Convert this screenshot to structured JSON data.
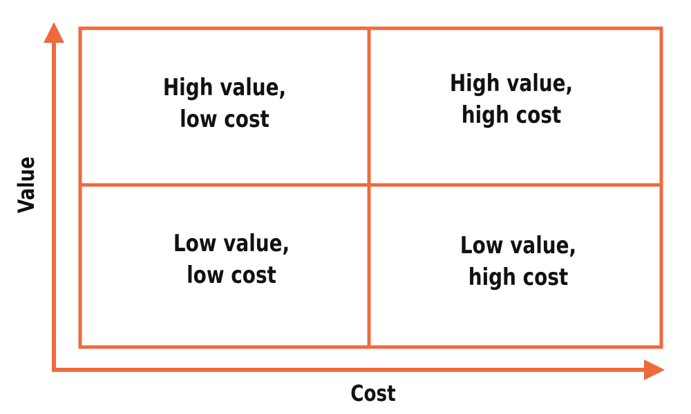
{
  "colors": {
    "accent": "#EE6A3D",
    "text": "#111111",
    "background": "#FFFFFF"
  },
  "axes": {
    "x_label": "Cost",
    "y_label": "Value"
  },
  "quadrants": {
    "top_left": {
      "line1": "High value,",
      "line2": "low cost"
    },
    "top_right": {
      "line1": "High value,",
      "line2": "high cost"
    },
    "bottom_left": {
      "line1": "Low value,",
      "line2": "low cost"
    },
    "bottom_right": {
      "line1": "Low value,",
      "line2": "high cost"
    }
  }
}
